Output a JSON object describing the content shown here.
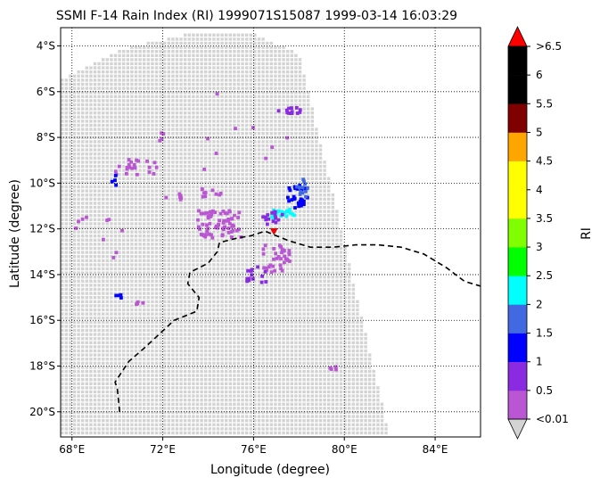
{
  "chart_data": {
    "type": "scatter",
    "title": "SSMI F-14 Rain Index (RI) 1999071S15087 1999-03-14 16:03:29",
    "xlabel": "Longitude (degree)",
    "ylabel": "Latitude (degree)",
    "xlim": [
      67.5,
      86.0
    ],
    "ylim": [
      -21.1,
      -3.2
    ],
    "xticks": [
      68,
      72,
      76,
      80,
      84
    ],
    "xtick_labels": [
      "68°E",
      "72°E",
      "76°E",
      "80°E",
      "84°E"
    ],
    "yticks": [
      -4,
      -6,
      -8,
      -10,
      -12,
      -14,
      -16,
      -18,
      -20
    ],
    "ytick_labels": [
      "4°S",
      "6°S",
      "8°S",
      "10°S",
      "12°S",
      "14°S",
      "16°S",
      "18°S",
      "20°S"
    ],
    "grid": true,
    "colorbar": {
      "label": "RI",
      "levels": [
        0.01,
        0.5,
        1,
        1.5,
        2,
        2.5,
        3,
        3.5,
        4,
        4.5,
        5,
        5.5,
        6,
        6.5
      ],
      "tick_labels": [
        "<0.01",
        "0.5",
        "1",
        "1.5",
        "2",
        "2.5",
        "3",
        "3.5",
        "4",
        "4.5",
        "5",
        "5.5",
        "6",
        ">6.5"
      ],
      "colors": [
        "#ba55d3",
        "#8a2be2",
        "#0000ff",
        "#4169e1",
        "#00ffff",
        "#00ff00",
        "#7fff00",
        "#ffff00",
        "#ffff00",
        "#ffa500",
        "#800000",
        "#000000",
        "#000000"
      ],
      "under_color": "#d3d3d3",
      "over_color": "#ff0000"
    },
    "swath": {
      "no_rain_color": "#d3d3d3",
      "outline": [
        [
          67.5,
          -5.5
        ],
        [
          70,
          -4.2
        ],
        [
          73,
          -3.5
        ],
        [
          76,
          -3.5
        ],
        [
          78,
          -4.3
        ],
        [
          79.5,
          -10.5
        ],
        [
          82,
          -21.1
        ],
        [
          67.5,
          -21.1
        ]
      ]
    },
    "rain_clusters": [
      {
        "lon": 77.9,
        "lat": -10.6,
        "spread_lon": 0.5,
        "spread_lat": 0.5,
        "value": 1.2,
        "count": 30
      },
      {
        "lon": 78.2,
        "lat": -10.2,
        "spread_lon": 0.3,
        "spread_lat": 0.4,
        "value": 1.7,
        "count": 12
      },
      {
        "lon": 77.3,
        "lat": -11.4,
        "spread_lon": 0.5,
        "spread_lat": 0.25,
        "value": 2.2,
        "count": 18
      },
      {
        "lon": 76.8,
        "lat": -11.5,
        "spread_lon": 0.5,
        "spread_lat": 0.3,
        "value": 0.8,
        "count": 16
      },
      {
        "lon": 74.5,
        "lat": -11.8,
        "spread_lon": 1.0,
        "spread_lat": 0.6,
        "value": 0.3,
        "count": 70
      },
      {
        "lon": 77.0,
        "lat": -13.3,
        "spread_lon": 0.6,
        "spread_lat": 0.6,
        "value": 0.3,
        "count": 35
      },
      {
        "lon": 76.2,
        "lat": -14.0,
        "spread_lon": 0.5,
        "spread_lat": 0.4,
        "value": 0.7,
        "count": 14
      },
      {
        "lon": 70.8,
        "lat": -9.3,
        "spread_lon": 1.0,
        "spread_lat": 0.35,
        "value": 0.3,
        "count": 22
      },
      {
        "lon": 69.8,
        "lat": -9.9,
        "spread_lon": 0.15,
        "spread_lat": 0.25,
        "value": 1.2,
        "count": 4
      },
      {
        "lon": 74.1,
        "lat": -10.4,
        "spread_lon": 0.5,
        "spread_lat": 0.2,
        "value": 0.3,
        "count": 10
      },
      {
        "lon": 72.5,
        "lat": -10.6,
        "spread_lon": 0.6,
        "spread_lat": 0.15,
        "value": 0.3,
        "count": 6
      },
      {
        "lon": 77.6,
        "lat": -6.8,
        "spread_lon": 0.5,
        "spread_lat": 0.15,
        "value": 0.7,
        "count": 14
      },
      {
        "lon": 72.0,
        "lat": -8.0,
        "spread_lon": 0.15,
        "spread_lat": 0.2,
        "value": 0.3,
        "count": 4
      },
      {
        "lon": 70.2,
        "lat": -15.0,
        "spread_lon": 0.3,
        "spread_lat": 0.15,
        "value": 1.2,
        "count": 4
      },
      {
        "lon": 70.8,
        "lat": -15.2,
        "spread_lon": 0.4,
        "spread_lat": 0.1,
        "value": 0.3,
        "count": 4
      },
      {
        "lon": 79.5,
        "lat": -18.1,
        "spread_lon": 0.2,
        "spread_lat": 0.1,
        "value": 0.3,
        "count": 4
      },
      {
        "lon": 69.2,
        "lat": -12.3,
        "spread_lon": 1.3,
        "spread_lat": 1.0,
        "value": 0.3,
        "count": 10
      },
      {
        "lon": 75.5,
        "lat": -7.0,
        "spread_lon": 2.5,
        "spread_lat": 3.5,
        "value": 0.3,
        "count": 10
      }
    ],
    "storm_center": {
      "lon": 76.9,
      "lat": -12.1
    },
    "coastline": [
      [
        70.1,
        -20.0
      ],
      [
        70.0,
        -19.0
      ],
      [
        69.9,
        -18.7
      ],
      [
        70.5,
        -17.8
      ],
      [
        71.2,
        -17.2
      ],
      [
        72.5,
        -16.0
      ],
      [
        73.5,
        -15.6
      ],
      [
        73.6,
        -15.0
      ],
      [
        73.1,
        -14.4
      ],
      [
        73.2,
        -13.9
      ],
      [
        74.0,
        -13.5
      ],
      [
        74.4,
        -13.0
      ],
      [
        74.5,
        -12.6
      ],
      [
        75.3,
        -12.4
      ],
      [
        75.9,
        -12.3
      ],
      [
        76.5,
        -12.1
      ],
      [
        77.5,
        -12.5
      ],
      [
        78.5,
        -12.8
      ],
      [
        79.5,
        -12.8
      ],
      [
        80.5,
        -12.7
      ],
      [
        81.5,
        -12.7
      ],
      [
        82.5,
        -12.8
      ],
      [
        83.5,
        -13.1
      ],
      [
        84.5,
        -13.7
      ],
      [
        85.3,
        -14.3
      ],
      [
        86.0,
        -14.5
      ]
    ]
  }
}
